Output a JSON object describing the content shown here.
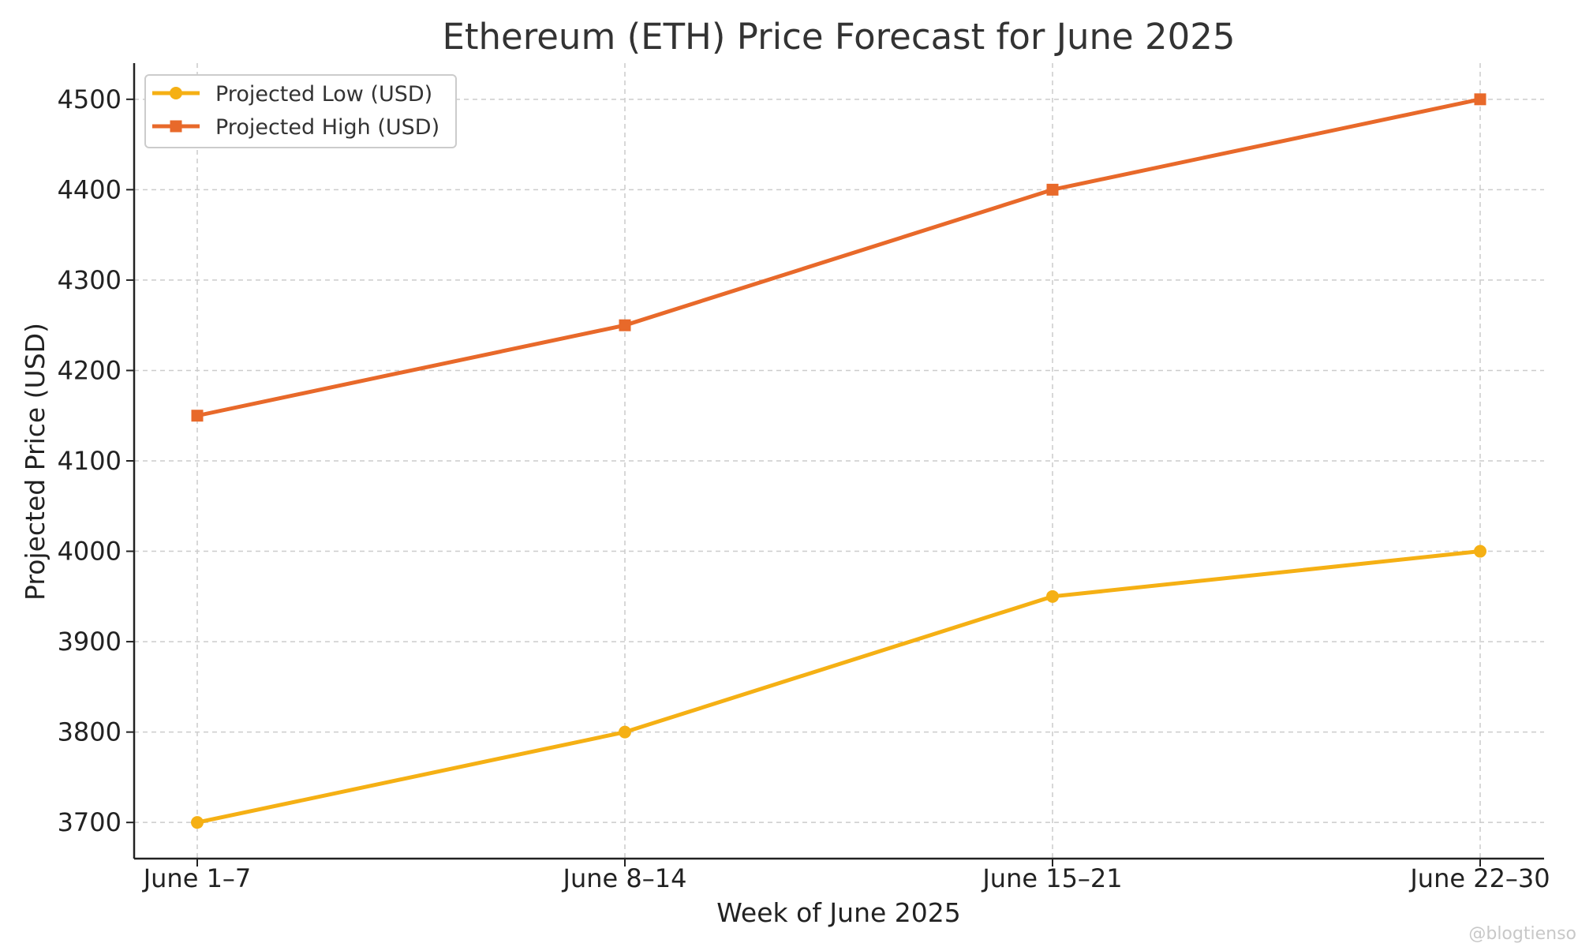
{
  "chart_data": {
    "type": "line",
    "title": "Ethereum (ETH) Price Forecast for June 2025",
    "xlabel": "Week of June 2025",
    "ylabel": "Projected Price (USD)",
    "categories": [
      "June 1–7",
      "June 8–14",
      "June 15–21",
      "June 22–30"
    ],
    "yticks": [
      3700,
      3800,
      3900,
      4000,
      4100,
      4200,
      4300,
      4400,
      4500
    ],
    "ylim": [
      3660,
      4540
    ],
    "grid": true,
    "legend_position": "top-left",
    "series": [
      {
        "name": "Projected Low (USD)",
        "values": [
          3700,
          3800,
          3950,
          4000
        ],
        "color": "#F5B014",
        "marker": "circle"
      },
      {
        "name": "Projected High (USD)",
        "values": [
          4150,
          4250,
          4400,
          4500
        ],
        "color": "#E8692A",
        "marker": "square"
      }
    ]
  },
  "watermark": "@blogtienso"
}
